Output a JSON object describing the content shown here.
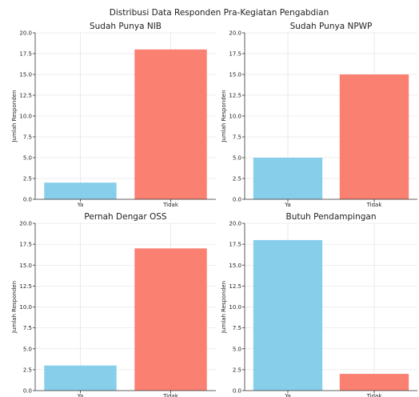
{
  "figure": {
    "title": "Distribusi Data Responden Pra-Kegiatan Pengabdian"
  },
  "colors": [
    "#87CEEB",
    "#FA8072"
  ],
  "chart_data": [
    {
      "type": "bar",
      "title": "Sudah Punya NIB",
      "categories": [
        "Ya",
        "Tidak"
      ],
      "values": [
        2,
        18
      ],
      "ylabel": "Jumlah Responden",
      "ylim": [
        0,
        20
      ],
      "yticks": [
        "0.0",
        "2.5",
        "5.0",
        "7.5",
        "10.0",
        "12.5",
        "15.0",
        "17.5",
        "20.0"
      ],
      "grid": true
    },
    {
      "type": "bar",
      "title": "Sudah Punya NPWP",
      "categories": [
        "Ya",
        "Tidak"
      ],
      "values": [
        5,
        15
      ],
      "ylabel": "Jumlah Responden",
      "ylim": [
        0,
        20
      ],
      "yticks": [
        "0.0",
        "2.5",
        "5.0",
        "7.5",
        "10.0",
        "12.5",
        "15.0",
        "17.5",
        "20.0"
      ],
      "grid": true
    },
    {
      "type": "bar",
      "title": "Pernah Dengar OSS",
      "categories": [
        "Ya",
        "Tidak"
      ],
      "values": [
        3,
        17
      ],
      "ylabel": "Jumlah Responden",
      "ylim": [
        0,
        20
      ],
      "yticks": [
        "0.0",
        "2.5",
        "5.0",
        "7.5",
        "10.0",
        "12.5",
        "15.0",
        "17.5",
        "20.0"
      ],
      "grid": true
    },
    {
      "type": "bar",
      "title": "Butuh Pendampingan",
      "categories": [
        "Ya",
        "Tidak"
      ],
      "values": [
        18,
        2
      ],
      "ylabel": "Jumlah Responden",
      "ylim": [
        0,
        20
      ],
      "yticks": [
        "0.0",
        "2.5",
        "5.0",
        "7.5",
        "10.0",
        "12.5",
        "15.0",
        "17.5",
        "20.0"
      ],
      "grid": true
    }
  ]
}
